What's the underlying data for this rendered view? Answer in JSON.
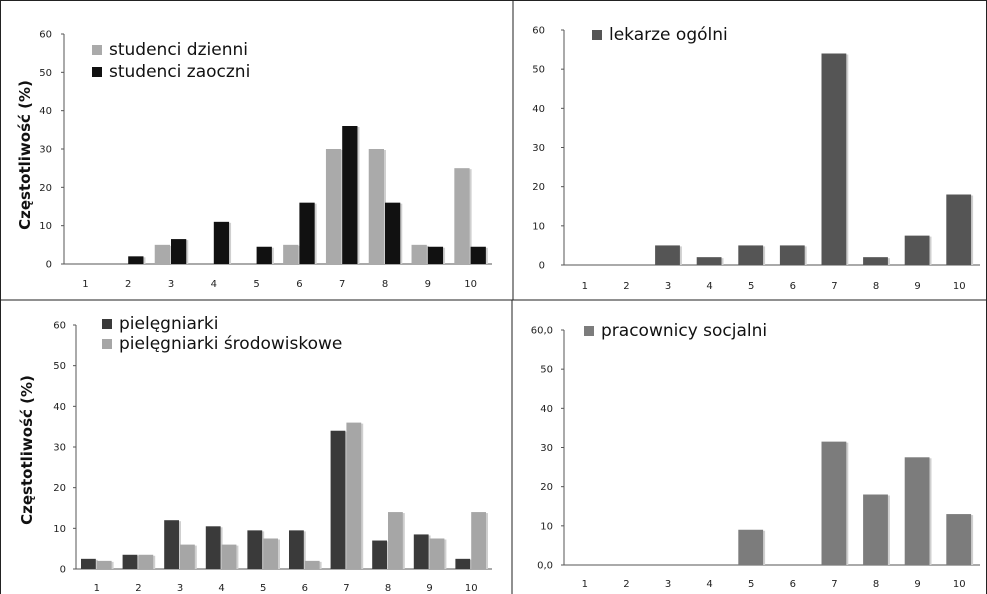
{
  "chart_data": [
    {
      "type": "bar",
      "categories": [
        "1",
        "2",
        "3",
        "4",
        "5",
        "6",
        "7",
        "8",
        "9",
        "10"
      ],
      "series": [
        {
          "name": "studenci dzienni",
          "color": "#aaaaaa",
          "values": [
            0,
            0,
            5,
            0,
            0,
            5,
            30,
            30,
            5,
            25
          ]
        },
        {
          "name": "studenci zaoczni",
          "color": "#111111",
          "values": [
            0,
            2,
            6.5,
            11,
            4.5,
            16,
            36,
            16,
            4.5,
            4.5
          ]
        }
      ],
      "ylabel": "Częstotliwość (%)",
      "ylim": [
        0,
        60
      ],
      "yticks": [
        "0",
        "10",
        "20",
        "30",
        "40",
        "50",
        "60"
      ],
      "legend": "top-left",
      "grid": false
    },
    {
      "type": "bar",
      "categories": [
        "1",
        "2",
        "3",
        "4",
        "5",
        "6",
        "7",
        "8",
        "9",
        "10"
      ],
      "series": [
        {
          "name": "lekarze ogólni",
          "color": "#555555",
          "values": [
            0,
            0,
            5,
            2,
            5,
            5,
            54,
            2,
            7.5,
            18
          ]
        }
      ],
      "ylabel": "",
      "ylim": [
        0,
        60
      ],
      "yticks": [
        "0",
        "10",
        "20",
        "30",
        "40",
        "50",
        "60"
      ],
      "legend": "top-left",
      "grid": false
    },
    {
      "type": "bar",
      "categories": [
        "1",
        "2",
        "3",
        "4",
        "5",
        "6",
        "7",
        "8",
        "9",
        "10"
      ],
      "series": [
        {
          "name": "pielęgniarki",
          "color": "#3a3a3a",
          "values": [
            2.5,
            3.5,
            12,
            10.5,
            9.5,
            9.5,
            34,
            7,
            8.5,
            2.5
          ]
        },
        {
          "name": "pielęgniarki środowiskowe",
          "color": "#a6a6a6",
          "values": [
            2,
            3.5,
            6,
            6,
            7.5,
            2,
            36,
            14,
            7.5,
            14
          ]
        }
      ],
      "ylabel": "Częstotliwość (%)",
      "ylim": [
        0,
        60
      ],
      "yticks": [
        "0",
        "10",
        "20",
        "30",
        "40",
        "50",
        "60"
      ],
      "legend": "top-left",
      "grid": false
    },
    {
      "type": "bar",
      "categories": [
        "1",
        "2",
        "3",
        "4",
        "5",
        "6",
        "7",
        "8",
        "9",
        "10"
      ],
      "series": [
        {
          "name": "pracownicy socjalni",
          "color": "#7c7c7c",
          "values": [
            0,
            0,
            0,
            0,
            9,
            0,
            31.5,
            18,
            27.5,
            13
          ]
        }
      ],
      "ylabel": "",
      "ylim": [
        0,
        60
      ],
      "yticks": [
        "0,0",
        "10",
        "20",
        "30",
        "40",
        "50",
        "60,0"
      ],
      "legend": "top-left",
      "grid": false
    }
  ]
}
